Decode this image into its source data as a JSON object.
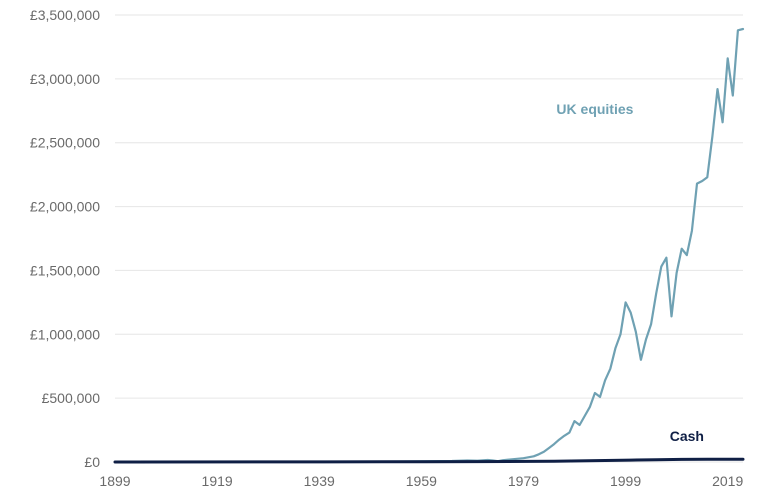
{
  "chart_data": {
    "type": "line",
    "title": "",
    "xlabel": "",
    "ylabel": "",
    "xlim": [
      1899,
      2022
    ],
    "ylim": [
      0,
      3500000
    ],
    "grid": true,
    "x_ticks": [
      1899,
      1919,
      1939,
      1959,
      1979,
      1999,
      2019
    ],
    "x_tick_labels": [
      "1899",
      "1919",
      "1939",
      "1959",
      "1979",
      "1999",
      "2019"
    ],
    "y_ticks": [
      0,
      500000,
      1000000,
      1500000,
      2000000,
      2500000,
      3000000,
      3500000
    ],
    "y_tick_labels": [
      "£0",
      "£500,000",
      "£1,000,000",
      "£1,500,000",
      "£2,000,000",
      "£2,500,000",
      "£3,000,000",
      "£3,500,000"
    ],
    "series": [
      {
        "name": "UK equities",
        "color": "#6fa1b3",
        "label_anchor": [
          1993,
          2725000
        ],
        "points": [
          [
            1899,
            0
          ],
          [
            1920,
            1000
          ],
          [
            1940,
            2000
          ],
          [
            1955,
            4000
          ],
          [
            1960,
            6000
          ],
          [
            1965,
            8000
          ],
          [
            1968,
            12000
          ],
          [
            1970,
            10000
          ],
          [
            1972,
            16000
          ],
          [
            1973,
            12000
          ],
          [
            1974,
            6000
          ],
          [
            1975,
            14000
          ],
          [
            1977,
            22000
          ],
          [
            1979,
            30000
          ],
          [
            1981,
            45000
          ],
          [
            1982,
            60000
          ],
          [
            1983,
            80000
          ],
          [
            1984,
            110000
          ],
          [
            1985,
            140000
          ],
          [
            1986,
            175000
          ],
          [
            1987,
            205000
          ],
          [
            1988,
            230000
          ],
          [
            1989,
            320000
          ],
          [
            1990,
            290000
          ],
          [
            1991,
            360000
          ],
          [
            1992,
            430000
          ],
          [
            1993,
            540000
          ],
          [
            1994,
            510000
          ],
          [
            1995,
            640000
          ],
          [
            1996,
            730000
          ],
          [
            1997,
            890000
          ],
          [
            1998,
            1000000
          ],
          [
            1999,
            1250000
          ],
          [
            2000,
            1170000
          ],
          [
            2001,
            1020000
          ],
          [
            2002,
            800000
          ],
          [
            2003,
            960000
          ],
          [
            2004,
            1080000
          ],
          [
            2005,
            1320000
          ],
          [
            2006,
            1530000
          ],
          [
            2007,
            1600000
          ],
          [
            2008,
            1140000
          ],
          [
            2009,
            1480000
          ],
          [
            2010,
            1670000
          ],
          [
            2011,
            1620000
          ],
          [
            2012,
            1810000
          ],
          [
            2013,
            2180000
          ],
          [
            2014,
            2200000
          ],
          [
            2015,
            2230000
          ],
          [
            2016,
            2550000
          ],
          [
            2017,
            2920000
          ],
          [
            2018,
            2660000
          ],
          [
            2019,
            3160000
          ],
          [
            2020,
            2870000
          ],
          [
            2021,
            3380000
          ],
          [
            2022,
            3390000
          ]
        ]
      },
      {
        "name": "Cash",
        "color": "#0f1f45",
        "label_anchor": [
          2011,
          165000
        ],
        "points": [
          [
            1899,
            0
          ],
          [
            1940,
            1000
          ],
          [
            1960,
            2000
          ],
          [
            1970,
            3000
          ],
          [
            1980,
            5000
          ],
          [
            1985,
            6000
          ],
          [
            1990,
            9000
          ],
          [
            1995,
            12000
          ],
          [
            2000,
            15000
          ],
          [
            2005,
            18000
          ],
          [
            2010,
            20000
          ],
          [
            2015,
            21000
          ],
          [
            2022,
            22000
          ]
        ]
      }
    ]
  }
}
